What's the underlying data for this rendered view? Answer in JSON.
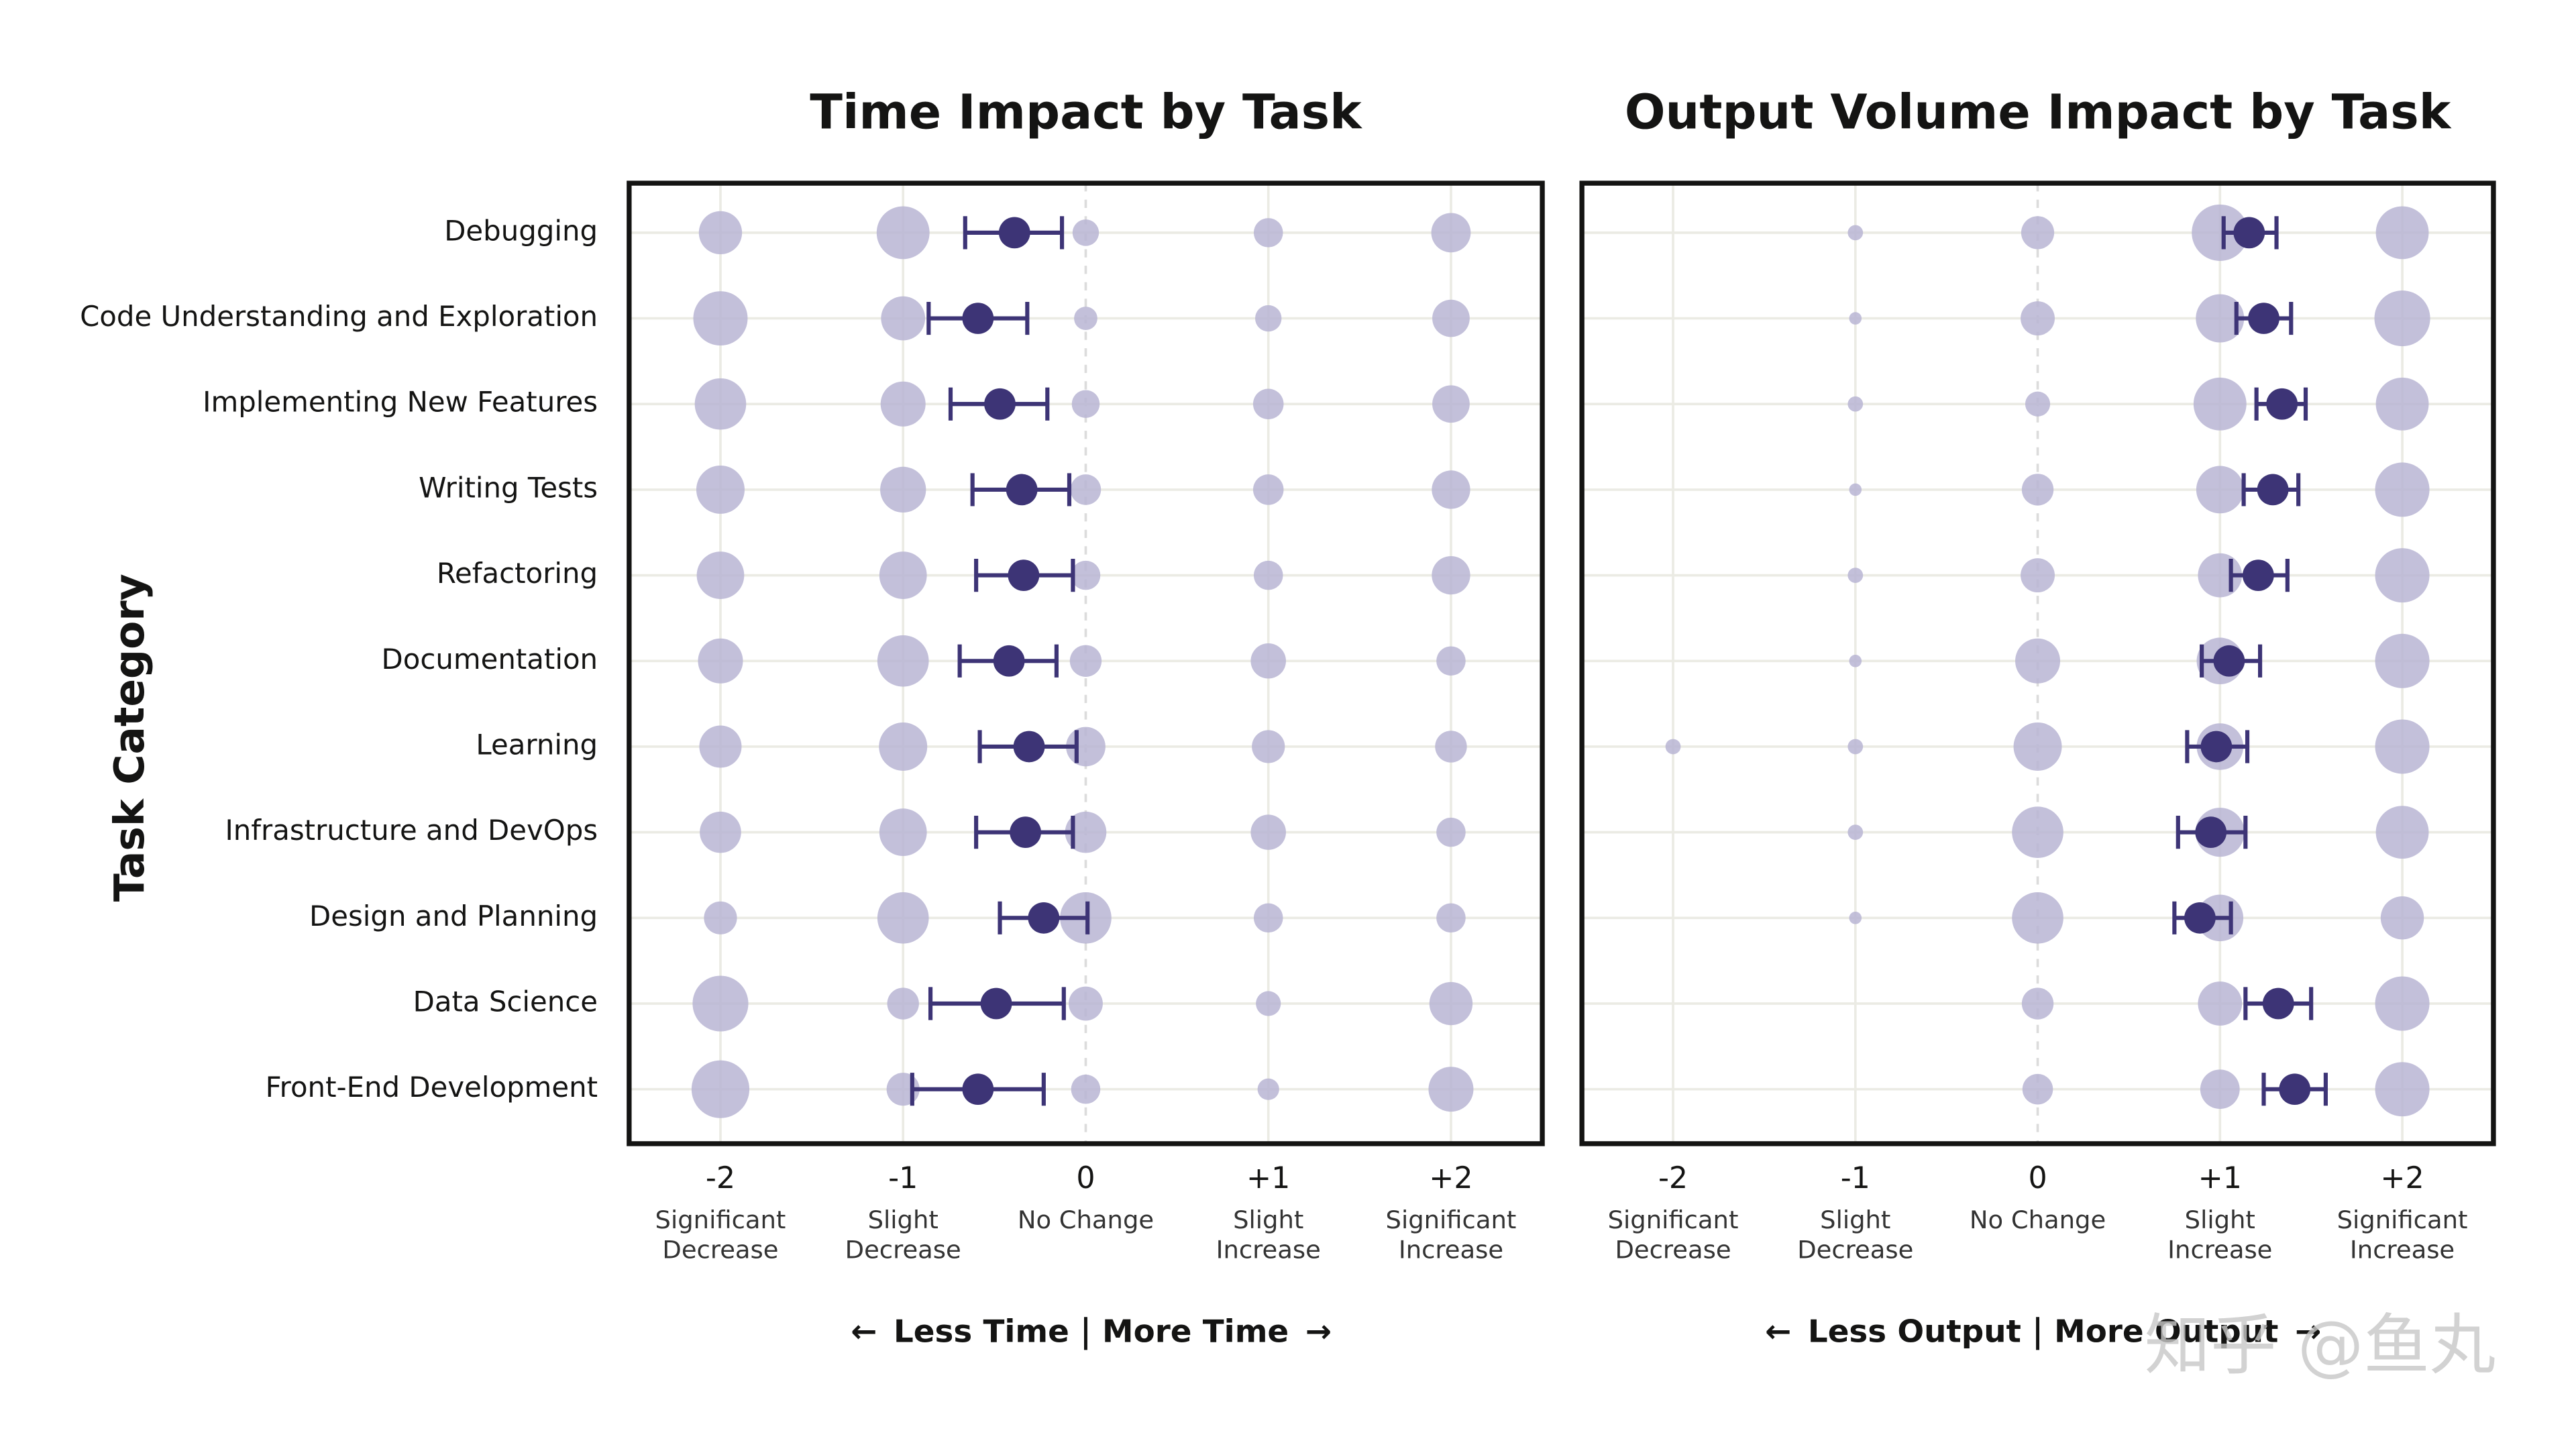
{
  "chart_data": [
    {
      "type": "dot-errorbar",
      "title": "Time Impact by Task",
      "ylabel": "Task Category",
      "categories": [
        "Debugging",
        "Code Understanding and Exploration",
        "Implementing New Features",
        "Writing Tests",
        "Refactoring",
        "Documentation",
        "Learning",
        "Infrastructure and DevOps",
        "Design and Planning",
        "Data Science",
        "Front-End Development"
      ],
      "xlim": [
        -2.5,
        2.5
      ],
      "xticks": [
        -2,
        -1,
        0,
        {
          "value": 1,
          "label": "+1"
        },
        {
          "value": 2,
          "label": "+2"
        }
      ],
      "xtick_sublabels": [
        [
          "Significant",
          "Decrease"
        ],
        [
          "Slight",
          "Decrease"
        ],
        [
          "No Change"
        ],
        [
          "Slight",
          "Increase"
        ],
        [
          "Significant",
          "Increase"
        ]
      ],
      "left_label": "Less Time",
      "right_label": "More Time",
      "distribution": [
        [
          24,
          36,
          9,
          11,
          20
        ],
        [
          38,
          25,
          7,
          9,
          18
        ],
        [
          34,
          26,
          10,
          12,
          18
        ],
        [
          30,
          27,
          12,
          12,
          19
        ],
        [
          29,
          29,
          11,
          11,
          19
        ],
        [
          26,
          34,
          13,
          16,
          11
        ],
        [
          23,
          30,
          20,
          14,
          13
        ],
        [
          22,
          29,
          22,
          16,
          11
        ],
        [
          14,
          34,
          34,
          11,
          11
        ],
        [
          40,
          13,
          15,
          8,
          24
        ],
        [
          43,
          14,
          11,
          6,
          26
        ]
      ],
      "means": [
        -0.39,
        -0.59,
        -0.47,
        -0.35,
        -0.34,
        -0.42,
        -0.31,
        -0.33,
        -0.23,
        -0.49,
        -0.59
      ],
      "ci": [
        [
          -0.66,
          -0.13
        ],
        [
          -0.86,
          -0.32
        ],
        [
          -0.74,
          -0.21
        ],
        [
          -0.62,
          -0.09
        ],
        [
          -0.6,
          -0.07
        ],
        [
          -0.69,
          -0.16
        ],
        [
          -0.58,
          -0.05
        ],
        [
          -0.6,
          -0.07
        ],
        [
          -0.47,
          0.01
        ],
        [
          -0.85,
          -0.12
        ],
        [
          -0.95,
          -0.23
        ]
      ],
      "bubble_color": "#b9b5d4",
      "mean_color": "#3d3476",
      "grid": true
    },
    {
      "type": "dot-errorbar",
      "title": "Output Volume Impact by Task",
      "xlim": [
        -2.5,
        2.5
      ],
      "xticks": [
        -2,
        -1,
        0,
        {
          "value": 1,
          "label": "+1"
        },
        {
          "value": 2,
          "label": "+2"
        }
      ],
      "xtick_sublabels": [
        [
          "Significant",
          "Decrease"
        ],
        [
          "Slight",
          "Decrease"
        ],
        [
          "No Change"
        ],
        [
          "Slight",
          "Increase"
        ],
        [
          "Significant",
          "Increase"
        ]
      ],
      "left_label": "Less Output",
      "right_label": "More Output",
      "distribution": [
        [
          0,
          3,
          14,
          41,
          36
        ],
        [
          0,
          2,
          15,
          30,
          40
        ],
        [
          0,
          3,
          8,
          36,
          36
        ],
        [
          0,
          2,
          13,
          29,
          38
        ],
        [
          0,
          3,
          15,
          25,
          38
        ],
        [
          0,
          2,
          26,
          28,
          38
        ],
        [
          3,
          3,
          30,
          28,
          38
        ],
        [
          0,
          3,
          34,
          31,
          36
        ],
        [
          0,
          2,
          34,
          28,
          24
        ],
        [
          0,
          0,
          13,
          25,
          38
        ],
        [
          0,
          0,
          12,
          20,
          38
        ]
      ],
      "means": [
        1.16,
        1.24,
        1.34,
        1.29,
        1.21,
        1.05,
        0.98,
        0.95,
        0.89,
        1.32,
        1.41
      ],
      "ci": [
        [
          1.02,
          1.31
        ],
        [
          1.09,
          1.39
        ],
        [
          1.2,
          1.47
        ],
        [
          1.13,
          1.43
        ],
        [
          1.06,
          1.37
        ],
        [
          0.9,
          1.22
        ],
        [
          0.82,
          1.15
        ],
        [
          0.77,
          1.14
        ],
        [
          0.75,
          1.06
        ],
        [
          1.14,
          1.5
        ],
        [
          1.24,
          1.58
        ]
      ],
      "bubble_color": "#b9b5d4",
      "mean_color": "#3d3476",
      "grid": true
    }
  ],
  "watermark": "知乎 @鱼丸"
}
